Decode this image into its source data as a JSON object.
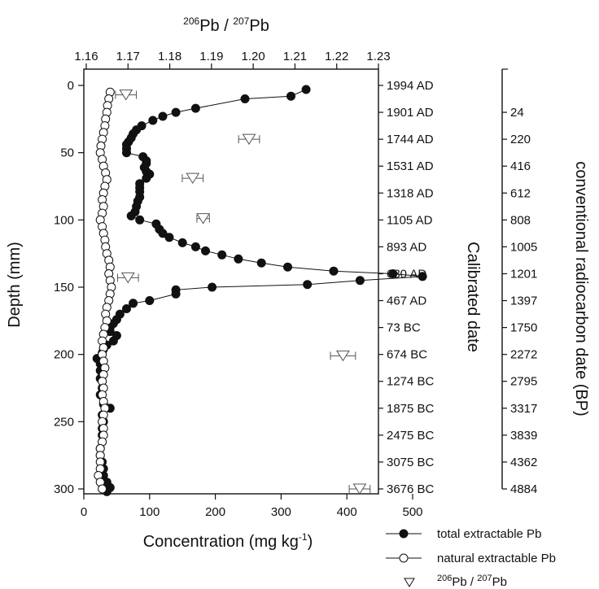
{
  "chart_data": {
    "type": "scatter",
    "title": "",
    "xlabel": "Concentration (mg kg⁻¹)",
    "xlabel_parts": {
      "main": "Concentration (mg kg",
      "sup": "-1",
      "close": ")"
    },
    "ylabel": "Depth (mm)",
    "x2label_parts": {
      "a": "206",
      "b": "Pb / ",
      "c": "207",
      "d": "Pb"
    },
    "right_label_1": "Calibrated date",
    "right_label_2": "conventional radiocarbon date (BP)",
    "xlim": [
      0,
      550
    ],
    "x2lim": [
      1.16,
      1.23
    ],
    "ylim": [
      0,
      305
    ],
    "y_reversed": true,
    "x_ticks": [
      "0",
      "100",
      "200",
      "300",
      "400",
      "500"
    ],
    "x2_ticks": [
      "1.16",
      "1.17",
      "1.18",
      "1.19",
      "1.20",
      "1.21",
      "1.22",
      "1.23"
    ],
    "y_ticks": [
      "0",
      "50",
      "100",
      "150",
      "200",
      "250",
      "300"
    ],
    "calibrated_dates": [
      "1994 AD",
      "1901 AD",
      "1744 AD",
      "1531 AD",
      "1318 AD",
      "1105 AD",
      "893 AD",
      "680 AD",
      "467 AD",
      "73 BC",
      "674 BC",
      "1274 BC",
      "1875 BC",
      "2475 BC",
      "3075 BC",
      "3676 BC"
    ],
    "radiocarbon_dates": [
      "24",
      "220",
      "416",
      "612",
      "808",
      "1005",
      "1201",
      "1397",
      "1750",
      "2272",
      "2795",
      "3317",
      "3839",
      "4362",
      "4884"
    ],
    "legend": {
      "total": "total extractable Pb",
      "natural": "natural extractable Pb",
      "ratio_parts": {
        "a": "206",
        "b": "Pb / ",
        "c": "207",
        "d": "Pb"
      }
    },
    "series": [
      {
        "name": "total extractable Pb",
        "marker": "filled-circle",
        "points": [
          [
            338,
            3
          ],
          [
            315,
            8
          ],
          [
            245,
            10
          ],
          [
            170,
            17
          ],
          [
            140,
            20
          ],
          [
            120,
            23
          ],
          [
            105,
            26
          ],
          [
            88,
            30
          ],
          [
            80,
            33
          ],
          [
            75,
            36
          ],
          [
            72,
            39
          ],
          [
            68,
            42
          ],
          [
            65,
            44
          ],
          [
            65,
            47
          ],
          [
            65,
            50
          ],
          [
            90,
            53
          ],
          [
            95,
            56
          ],
          [
            95,
            58
          ],
          [
            92,
            61
          ],
          [
            95,
            64
          ],
          [
            100,
            66
          ],
          [
            95,
            69
          ],
          [
            85,
            73
          ],
          [
            85,
            76
          ],
          [
            85,
            79
          ],
          [
            85,
            83
          ],
          [
            82,
            86
          ],
          [
            80,
            90
          ],
          [
            78,
            94
          ],
          [
            72,
            97
          ],
          [
            85,
            100
          ],
          [
            110,
            103
          ],
          [
            115,
            107
          ],
          [
            120,
            110
          ],
          [
            130,
            113
          ],
          [
            150,
            117
          ],
          [
            170,
            120
          ],
          [
            185,
            123
          ],
          [
            210,
            126
          ],
          [
            235,
            129
          ],
          [
            270,
            132
          ],
          [
            310,
            135
          ],
          [
            380,
            138
          ],
          [
            470,
            140
          ],
          [
            515,
            142
          ],
          [
            420,
            145
          ],
          [
            340,
            148
          ],
          [
            195,
            150
          ],
          [
            140,
            152
          ],
          [
            140,
            155
          ],
          [
            100,
            160
          ],
          [
            75,
            162
          ],
          [
            65,
            166
          ],
          [
            55,
            170
          ],
          [
            50,
            174
          ],
          [
            45,
            177
          ],
          [
            40,
            180
          ],
          [
            40,
            183
          ],
          [
            50,
            186
          ],
          [
            45,
            190
          ],
          [
            35,
            193
          ],
          [
            30,
            196
          ],
          [
            28,
            199
          ],
          [
            20,
            203
          ],
          [
            25,
            207
          ],
          [
            25,
            212
          ],
          [
            25,
            218
          ],
          [
            28,
            225
          ],
          [
            25,
            230
          ],
          [
            30,
            237
          ],
          [
            40,
            240
          ],
          [
            28,
            245
          ],
          [
            30,
            250
          ],
          [
            28,
            255
          ],
          [
            28,
            260
          ],
          [
            28,
            265
          ],
          [
            25,
            270
          ],
          [
            25,
            275
          ],
          [
            28,
            280
          ],
          [
            30,
            285
          ],
          [
            30,
            290
          ],
          [
            35,
            295
          ],
          [
            40,
            299
          ],
          [
            35,
            302
          ]
        ]
      },
      {
        "name": "natural extractable Pb",
        "marker": "open-circle",
        "points": [
          [
            40,
            5
          ],
          [
            38,
            10
          ],
          [
            36,
            15
          ],
          [
            35,
            20
          ],
          [
            33,
            25
          ],
          [
            32,
            30
          ],
          [
            30,
            35
          ],
          [
            28,
            40
          ],
          [
            26,
            45
          ],
          [
            25,
            50
          ],
          [
            28,
            55
          ],
          [
            30,
            60
          ],
          [
            33,
            65
          ],
          [
            35,
            70
          ],
          [
            32,
            75
          ],
          [
            30,
            80
          ],
          [
            28,
            85
          ],
          [
            30,
            90
          ],
          [
            28,
            95
          ],
          [
            25,
            100
          ],
          [
            28,
            105
          ],
          [
            30,
            110
          ],
          [
            32,
            115
          ],
          [
            33,
            120
          ],
          [
            35,
            125
          ],
          [
            38,
            130
          ],
          [
            40,
            135
          ],
          [
            38,
            140
          ],
          [
            40,
            145
          ],
          [
            42,
            150
          ],
          [
            40,
            155
          ],
          [
            38,
            160
          ],
          [
            35,
            165
          ],
          [
            33,
            170
          ],
          [
            35,
            175
          ],
          [
            32,
            180
          ],
          [
            30,
            185
          ],
          [
            28,
            190
          ],
          [
            30,
            195
          ],
          [
            28,
            200
          ],
          [
            30,
            205
          ],
          [
            32,
            210
          ],
          [
            30,
            215
          ],
          [
            28,
            220
          ],
          [
            30,
            225
          ],
          [
            28,
            230
          ],
          [
            30,
            235
          ],
          [
            32,
            240
          ],
          [
            30,
            245
          ],
          [
            28,
            250
          ],
          [
            30,
            255
          ],
          [
            30,
            260
          ],
          [
            28,
            265
          ],
          [
            25,
            270
          ],
          [
            25,
            275
          ],
          [
            25,
            280
          ],
          [
            25,
            285
          ],
          [
            22,
            290
          ],
          [
            25,
            295
          ],
          [
            28,
            300
          ]
        ]
      },
      {
        "name": "206Pb / 207Pb",
        "marker": "open-triangle-down",
        "points": [
          [
            1.1695,
            7,
            0.0025
          ],
          [
            1.199,
            40,
            0.0025
          ],
          [
            1.1855,
            69,
            0.0025
          ],
          [
            1.188,
            99,
            0.0015
          ],
          [
            1.17,
            143,
            0.0025
          ],
          [
            1.2215,
            201,
            0.003
          ],
          [
            1.2255,
            300,
            0.0025
          ]
        ]
      }
    ]
  }
}
